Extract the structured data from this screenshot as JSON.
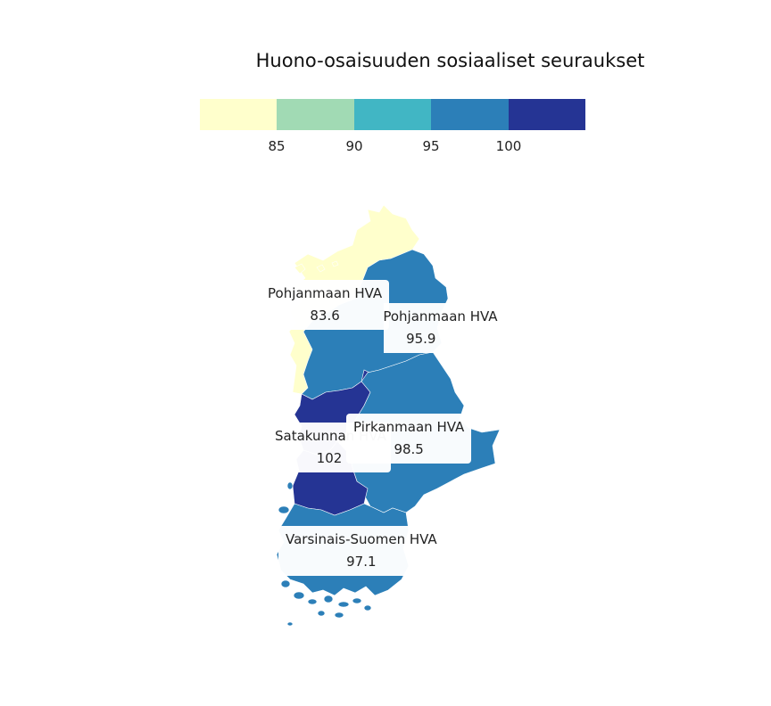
{
  "title": "Huono-osaisuuden sosiaaliset seuraukset",
  "legend": {
    "colors": [
      "#ffffcc",
      "#a1dab4",
      "#41b6c4",
      "#2c7fb8",
      "#253494"
    ],
    "ticks": [
      "85",
      "90",
      "95",
      "100"
    ]
  },
  "regions": [
    {
      "name": "Pohjanmaan HVA",
      "value": "83.6",
      "color": "#ffffcc"
    },
    {
      "name": "Etelä-Pohjanmaan HVA",
      "value": "95.9",
      "color": "#2c7fb8"
    },
    {
      "name": "Satakunnan HVA",
      "value": "102",
      "color": "#253494"
    },
    {
      "name": "Pirkanmaan HVA",
      "value": "98.5",
      "color": "#2c7fb8"
    },
    {
      "name": "Varsinais-Suomen HVA",
      "value": "97.1",
      "color": "#2c7fb8"
    }
  ]
}
